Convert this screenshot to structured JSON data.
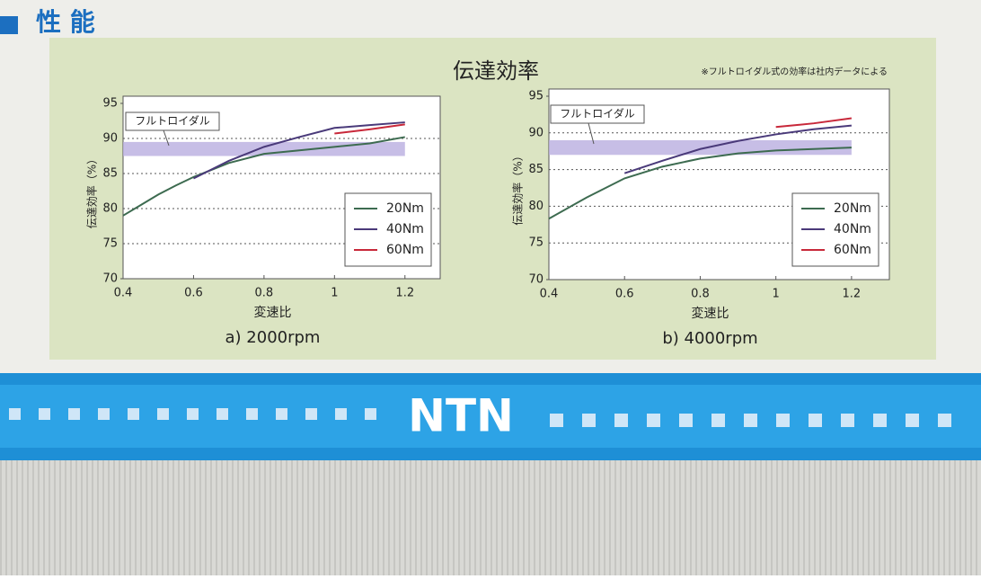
{
  "header": "性 能",
  "title": "伝達効率",
  "note": "※フルトロイダル式の効率は社内データによる",
  "logo": "NTN",
  "chart_data": [
    {
      "type": "line",
      "caption": "a) 2000rpm",
      "xlabel": "変速比",
      "ylabel": "伝達効率（%）",
      "xlim": [
        0.4,
        1.3
      ],
      "ylim": [
        70,
        95
      ],
      "xticks": [
        0.4,
        0.6,
        0.8,
        1,
        1.2
      ],
      "yticks": [
        70,
        75,
        80,
        85,
        90,
        95
      ],
      "grid": true,
      "legend": "lower right",
      "band": {
        "label": "フルトロイダル",
        "x": [
          0.4,
          1.2
        ],
        "y": [
          87.5,
          89.5
        ],
        "color": "#b9aee0"
      },
      "series": [
        {
          "name": "20Nm",
          "color": "#3d6b50",
          "x": [
            0.4,
            0.45,
            0.5,
            0.55,
            0.6,
            0.7,
            0.8,
            0.9,
            1.0,
            1.1,
            1.2
          ],
          "values": [
            79,
            80.5,
            82,
            83.3,
            84.5,
            86.5,
            87.8,
            88.3,
            88.8,
            89.3,
            90.2
          ]
        },
        {
          "name": "40Nm",
          "color": "#4a3a7a",
          "x": [
            0.6,
            0.7,
            0.8,
            0.9,
            1.0,
            1.1,
            1.2
          ],
          "values": [
            84.3,
            86.8,
            88.8,
            90.2,
            91.5,
            91.9,
            92.3
          ]
        },
        {
          "name": "60Nm",
          "color": "#c8283a",
          "x": [
            1.0,
            1.1,
            1.2
          ],
          "values": [
            90.7,
            91.3,
            92.0
          ]
        }
      ]
    },
    {
      "type": "line",
      "caption": "b) 4000rpm",
      "xlabel": "変速比",
      "ylabel": "伝達効率（%）",
      "xlim": [
        0.4,
        1.3
      ],
      "ylim": [
        70,
        95
      ],
      "xticks": [
        0.4,
        0.6,
        0.8,
        1,
        1.2
      ],
      "yticks": [
        70,
        75,
        80,
        85,
        90,
        95
      ],
      "grid": true,
      "legend": "lower right",
      "band": {
        "label": "フルトロイダル",
        "x": [
          0.4,
          1.2
        ],
        "y": [
          87,
          89
        ],
        "color": "#b9aee0"
      },
      "series": [
        {
          "name": "20Nm",
          "color": "#3d6b50",
          "x": [
            0.4,
            0.5,
            0.6,
            0.7,
            0.8,
            0.9,
            1.0,
            1.1,
            1.2
          ],
          "values": [
            78.3,
            81.2,
            83.8,
            85.4,
            86.5,
            87.2,
            87.6,
            87.8,
            88.0
          ]
        },
        {
          "name": "40Nm",
          "color": "#4a3a7a",
          "x": [
            0.6,
            0.7,
            0.8,
            0.9,
            1.0,
            1.1,
            1.2
          ],
          "values": [
            84.5,
            86.2,
            87.8,
            88.9,
            89.8,
            90.5,
            91.0
          ]
        },
        {
          "name": "60Nm",
          "color": "#c8283a",
          "x": [
            1.0,
            1.1,
            1.2
          ],
          "values": [
            90.8,
            91.3,
            92.0
          ]
        }
      ]
    }
  ]
}
